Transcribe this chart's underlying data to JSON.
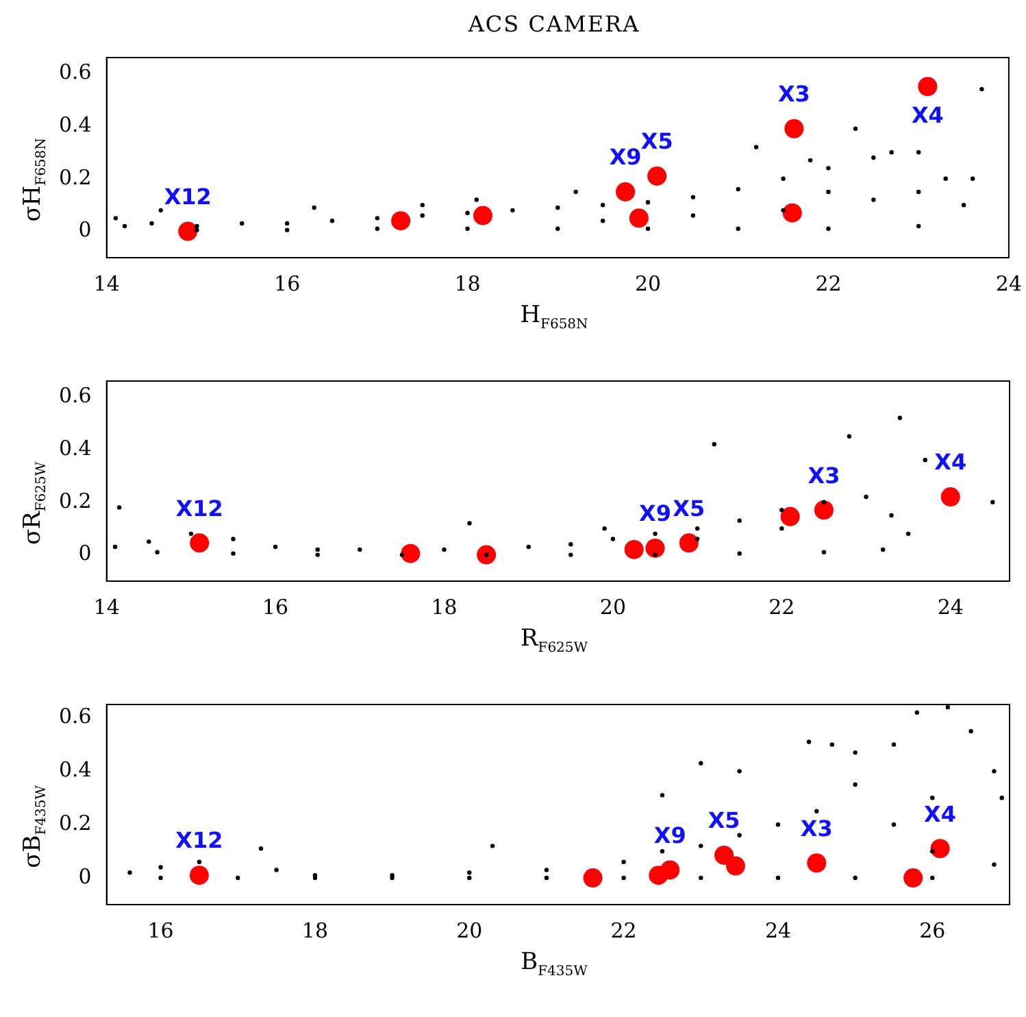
{
  "chart_data": [
    {
      "type": "scatter",
      "title": "ACS CAMERA",
      "xlabel": "H$_{F658N}$",
      "ylabel": "σH$_{F658N}$",
      "xlim": [
        14,
        24
      ],
      "xticks": [
        14,
        16,
        18,
        20,
        22,
        24
      ],
      "ylim": [
        -0.1,
        0.66
      ],
      "yticks": [
        0,
        0.2,
        0.4,
        0.6
      ],
      "grid": false,
      "legend": false,
      "marker": "circle",
      "annotations": [
        {
          "text": "X12",
          "x": 14.9,
          "y": 0.0
        },
        {
          "text": "X9",
          "x": 19.75,
          "y": 0.15
        },
        {
          "text": "X5",
          "x": 20.1,
          "y": 0.21
        },
        {
          "text": "X3",
          "x": 21.62,
          "y": 0.39
        },
        {
          "text": "X4",
          "x": 23.1,
          "y": 0.55
        }
      ],
      "series": [
        {
          "color": "#000000",
          "x": [
            14.1,
            14.5,
            15.0,
            15.5,
            16.0,
            16.5,
            17.0,
            17.5,
            18.0,
            18.5,
            19.0,
            19.5,
            20.0,
            20.5,
            21.0,
            21.5,
            22.0,
            22.5,
            23.0,
            23.3,
            23.5,
            14.6,
            16.3,
            17.5,
            18.1,
            19.2,
            21.2,
            21.8,
            22.3,
            22.7,
            23.6,
            23.7,
            14.2,
            15.0,
            16.0,
            17.0,
            18.0,
            19.0,
            20.0,
            21.0,
            22.0,
            23.0,
            21.5,
            22.5,
            23.0,
            22.0,
            20.5,
            19.5
          ],
          "values": [
            0.05,
            0.03,
            0.02,
            0.03,
            0.03,
            0.04,
            0.05,
            0.06,
            0.07,
            0.08,
            0.09,
            0.1,
            0.11,
            0.13,
            0.16,
            0.2,
            0.24,
            0.28,
            0.3,
            0.2,
            0.1,
            0.08,
            0.09,
            0.1,
            0.12,
            0.15,
            0.32,
            0.27,
            0.39,
            0.3,
            0.2,
            0.54,
            0.02,
            0.005,
            0.005,
            0.01,
            0.01,
            0.01,
            0.01,
            0.01,
            0.01,
            0.02,
            0.08,
            0.12,
            0.15,
            0.15,
            0.06,
            0.04
          ]
        },
        {
          "color": "#ff0000",
          "x": [
            14.9,
            17.26,
            18.17,
            19.75,
            19.9,
            20.1,
            21.6,
            21.62,
            23.1
          ],
          "values": [
            0.0,
            0.04,
            0.06,
            0.15,
            0.05,
            0.21,
            0.07,
            0.39,
            0.55
          ]
        }
      ]
    },
    {
      "type": "scatter",
      "xlabel": "R$_{F625W}$",
      "ylabel": "σR$_{F625W}$",
      "xlim": [
        14,
        24.7
      ],
      "xticks": [
        14,
        16,
        18,
        20,
        22,
        24
      ],
      "ylim": [
        -0.1,
        0.66
      ],
      "yticks": [
        0,
        0.2,
        0.4,
        0.6
      ],
      "grid": false,
      "legend": false,
      "marker": "circle",
      "annotations": [
        {
          "text": "X12",
          "x": 15.1,
          "y": 0.045
        },
        {
          "text": "X9",
          "x": 20.5,
          "y": 0.025
        },
        {
          "text": "X5",
          "x": 20.9,
          "y": 0.045
        },
        {
          "text": "X3",
          "x": 22.5,
          "y": 0.17
        },
        {
          "text": "X4",
          "x": 24.0,
          "y": 0.22
        }
      ],
      "series": [
        {
          "color": "#000000",
          "x": [
            14.1,
            14.15,
            14.5,
            15.0,
            15.5,
            16.0,
            16.5,
            17.0,
            18.0,
            19.0,
            19.5,
            20.0,
            20.5,
            21.0,
            21.5,
            22.0,
            22.5,
            23.0,
            23.3,
            23.5,
            21.2,
            22.8,
            23.4,
            23.7,
            24.5,
            18.3,
            19.9,
            14.6,
            15.5,
            16.5,
            17.5,
            18.5,
            19.5,
            20.5,
            21.5,
            22.5,
            23.2,
            22.0,
            21.0
          ],
          "values": [
            0.03,
            0.18,
            0.05,
            0.08,
            0.06,
            0.03,
            0.02,
            0.02,
            0.02,
            0.03,
            0.04,
            0.06,
            0.08,
            0.1,
            0.13,
            0.17,
            0.2,
            0.22,
            0.15,
            0.08,
            0.42,
            0.45,
            0.52,
            0.36,
            0.2,
            0.12,
            0.1,
            0.01,
            0.005,
            0.0,
            0.0,
            0.0,
            0.0,
            0.0,
            0.005,
            0.01,
            0.02,
            0.1,
            0.06
          ]
        },
        {
          "color": "#ff0000",
          "x": [
            15.1,
            17.6,
            18.5,
            20.25,
            20.5,
            20.9,
            22.1,
            22.5,
            24.0
          ],
          "values": [
            0.045,
            0.005,
            0.0,
            0.02,
            0.025,
            0.045,
            0.145,
            0.17,
            0.22
          ]
        }
      ]
    },
    {
      "type": "scatter",
      "xlabel": "B$_{F435W}$",
      "ylabel": "σB$_{F435W}$",
      "xlim": [
        15.3,
        27
      ],
      "xticks": [
        16,
        18,
        20,
        22,
        24,
        26
      ],
      "ylim": [
        -0.1,
        0.65
      ],
      "yticks": [
        0,
        0.2,
        0.4,
        0.6
      ],
      "grid": false,
      "legend": false,
      "marker": "circle",
      "annotations": [
        {
          "text": "X12",
          "x": 16.5,
          "y": 0.01
        },
        {
          "text": "X9",
          "x": 22.6,
          "y": 0.03
        },
        {
          "text": "X5",
          "x": 23.3,
          "y": 0.085
        },
        {
          "text": "X3",
          "x": 24.5,
          "y": 0.056
        },
        {
          "text": "X4",
          "x": 26.1,
          "y": 0.11
        }
      ],
      "series": [
        {
          "color": "#000000",
          "x": [
            15.6,
            16.0,
            16.5,
            17.3,
            17.5,
            18.0,
            19.0,
            20.0,
            21.0,
            22.0,
            22.5,
            23.0,
            23.5,
            24.0,
            24.5,
            25.0,
            25.5,
            25.8,
            26.2,
            26.5,
            26.8,
            26.9,
            26.8,
            22.5,
            23.0,
            23.5,
            24.4,
            24.7,
            25.0,
            16.0,
            17.0,
            18.0,
            19.0,
            20.0,
            21.0,
            22.0,
            23.0,
            24.0,
            25.0,
            26.0,
            25.5,
            26.0,
            26.0,
            20.3
          ],
          "values": [
            0.02,
            0.04,
            0.06,
            0.11,
            0.03,
            0.01,
            0.01,
            0.02,
            0.03,
            0.06,
            0.1,
            0.12,
            0.16,
            0.2,
            0.25,
            0.35,
            0.5,
            0.62,
            0.64,
            0.55,
            0.4,
            0.3,
            0.05,
            0.31,
            0.43,
            0.4,
            0.51,
            0.5,
            0.47,
            0.0,
            0.0,
            0.0,
            0.0,
            0.0,
            0.0,
            0.0,
            0.0,
            0.0,
            0.0,
            0.0,
            0.2,
            0.3,
            0.1,
            0.12
          ]
        },
        {
          "color": "#ff0000",
          "x": [
            16.5,
            21.6,
            22.45,
            22.6,
            23.3,
            23.45,
            24.5,
            25.75,
            26.1
          ],
          "values": [
            0.01,
            0.0,
            0.01,
            0.03,
            0.085,
            0.045,
            0.056,
            0.0,
            0.11
          ]
        }
      ]
    }
  ]
}
